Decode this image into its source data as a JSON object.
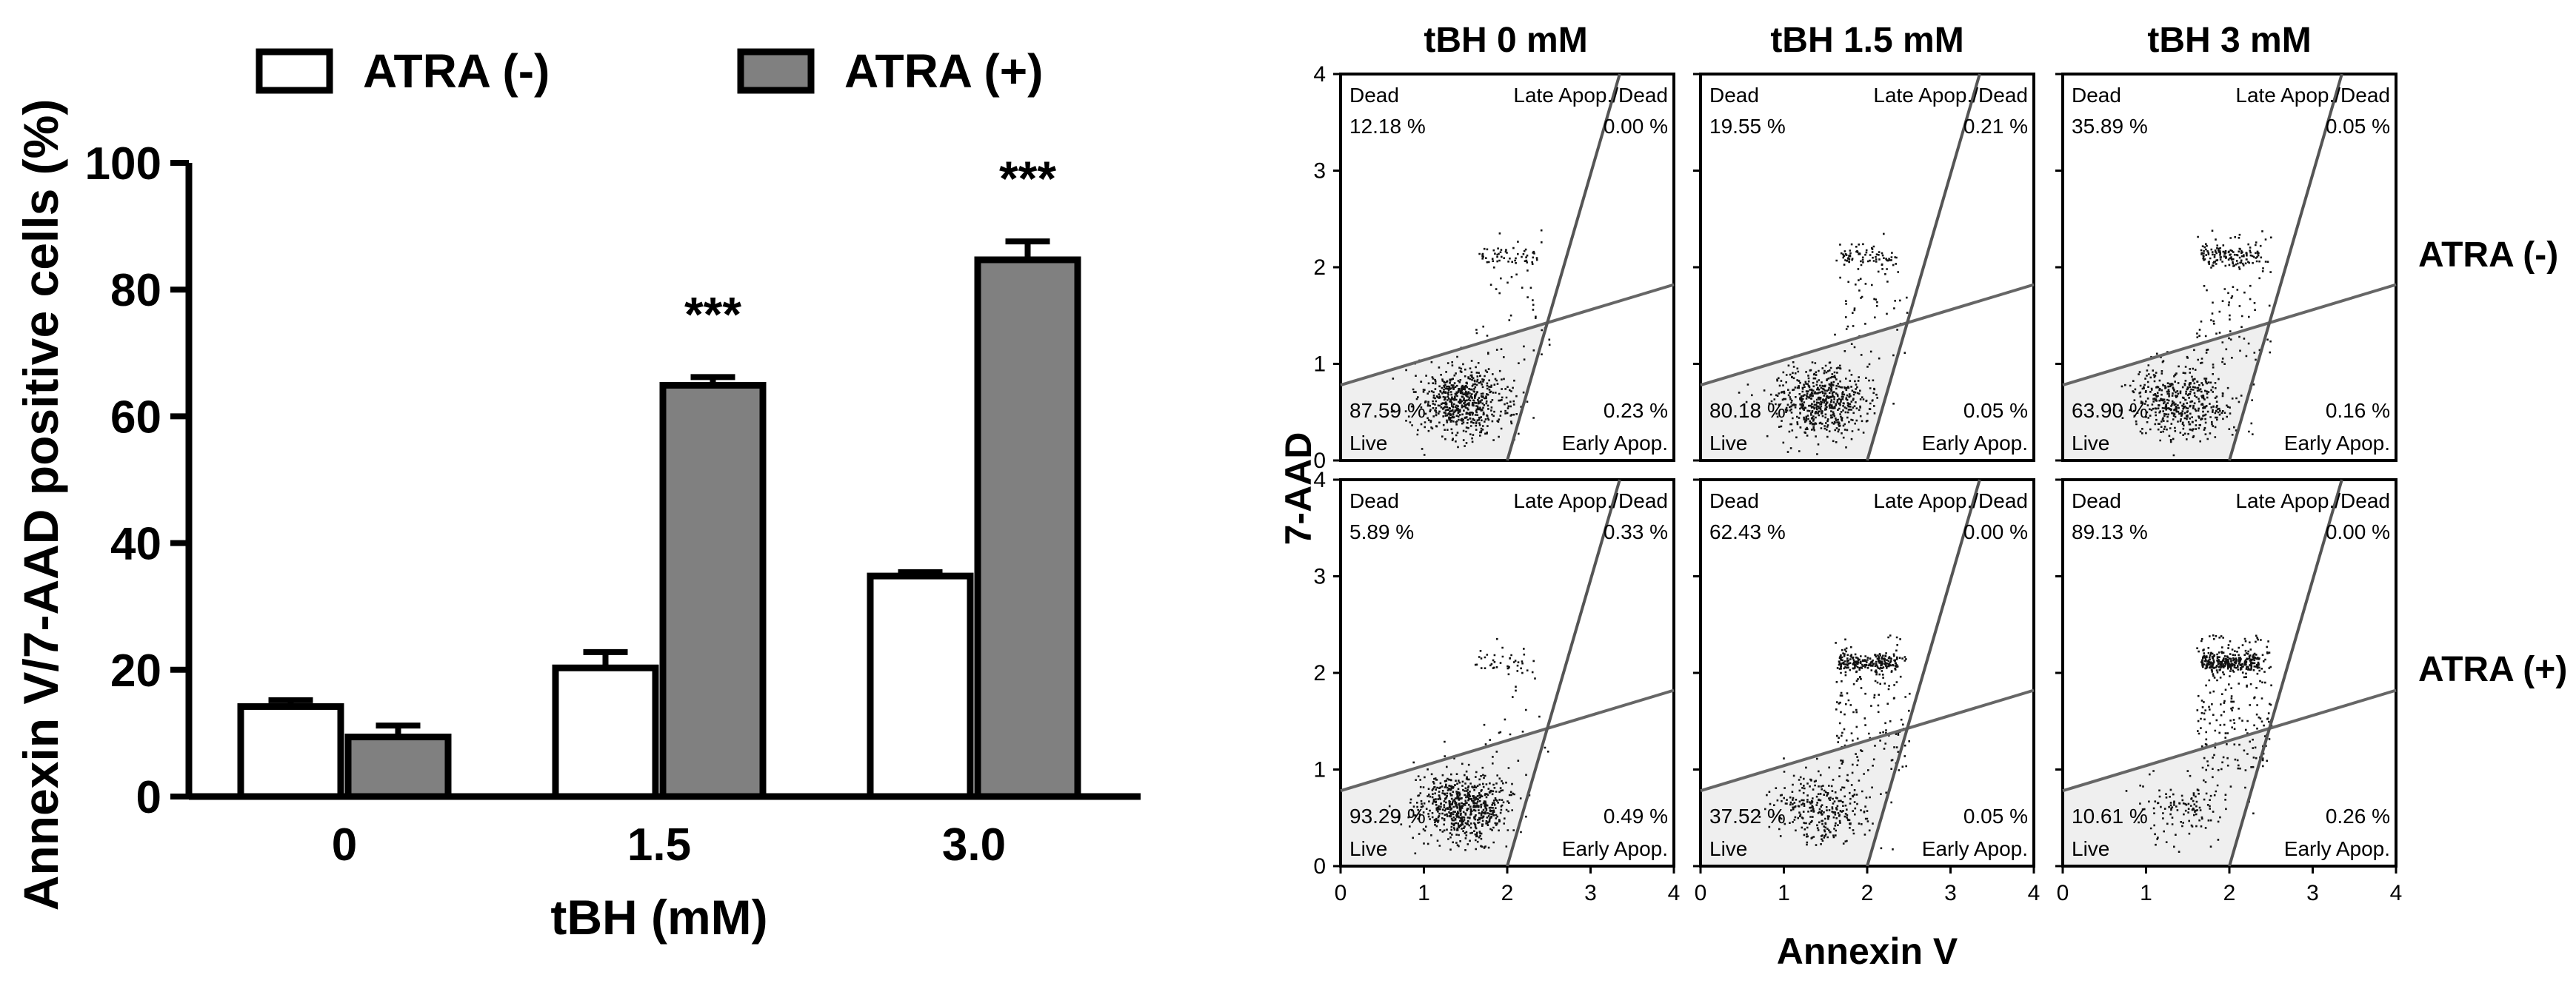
{
  "chart_data": [
    {
      "type": "bar",
      "ylabel": "Annexin V/7-AAD positive cells  (%)",
      "xlabel": "tBH (mM)",
      "categories": [
        "0",
        "1.5",
        "3.0"
      ],
      "ylim": [
        0,
        100
      ],
      "yticks": [
        "0",
        "20",
        "40",
        "60",
        "80",
        "100"
      ],
      "legend_position": "top",
      "series": [
        {
          "name": "ATRA (-)",
          "color": "#ffffff",
          "values": [
            14.2,
            20.3,
            34.8
          ],
          "errors": [
            1.0,
            2.5,
            0.6
          ]
        },
        {
          "name": "ATRA (+)",
          "color": "#808080",
          "values": [
            9.4,
            64.9,
            84.7
          ],
          "errors": [
            1.8,
            1.3,
            2.9
          ]
        }
      ],
      "annotations": [
        {
          "category": "1.5",
          "series": "ATRA (+)",
          "text": "***"
        },
        {
          "category": "3.0",
          "series": "ATRA (+)",
          "text": "***"
        }
      ]
    },
    {
      "type": "scatter",
      "subtype": "flow-cytometry-quadrant-grid",
      "xlabel": "Annexin V",
      "ylabel": "7-AAD",
      "xlim": [
        0,
        4
      ],
      "ylim": [
        0,
        4
      ],
      "ticks": [
        "0",
        "1",
        "2",
        "3",
        "4"
      ],
      "columns": [
        "tBH 0 mM",
        "tBH 1.5 mM",
        "tBH 3 mM"
      ],
      "rows": [
        "ATRA (-)",
        "ATRA (+)"
      ],
      "quadrant_labels": {
        "dead": "Dead",
        "late": "Late Apop./Dead",
        "live": "Live",
        "early": "Early Apop."
      },
      "panels": [
        {
          "row": "ATRA (-)",
          "column": "tBH 0 mM",
          "dead": "12.18 %",
          "late": "0.00 %",
          "live": "87.59 %",
          "early": "0.23 %"
        },
        {
          "row": "ATRA (-)",
          "column": "tBH 1.5 mM",
          "dead": "19.55 %",
          "late": "0.21 %",
          "live": "80.18 %",
          "early": "0.05 %"
        },
        {
          "row": "ATRA (-)",
          "column": "tBH 3 mM",
          "dead": "35.89 %",
          "late": "0.05 %",
          "live": "63.90 %",
          "early": "0.16 %"
        },
        {
          "row": "ATRA (+)",
          "column": "tBH 0 mM",
          "dead": "5.89 %",
          "late": "0.33 %",
          "live": "93.29 %",
          "early": "0.49 %"
        },
        {
          "row": "ATRA (+)",
          "column": "tBH 1.5 mM",
          "dead": "62.43 %",
          "late": "0.00 %",
          "live": "37.52 %",
          "early": "0.05 %"
        },
        {
          "row": "ATRA (+)",
          "column": "tBH 3 mM",
          "dead": "89.13 %",
          "late": "0.00 %",
          "live": "10.61 %",
          "early": "0.26 %"
        }
      ]
    }
  ]
}
